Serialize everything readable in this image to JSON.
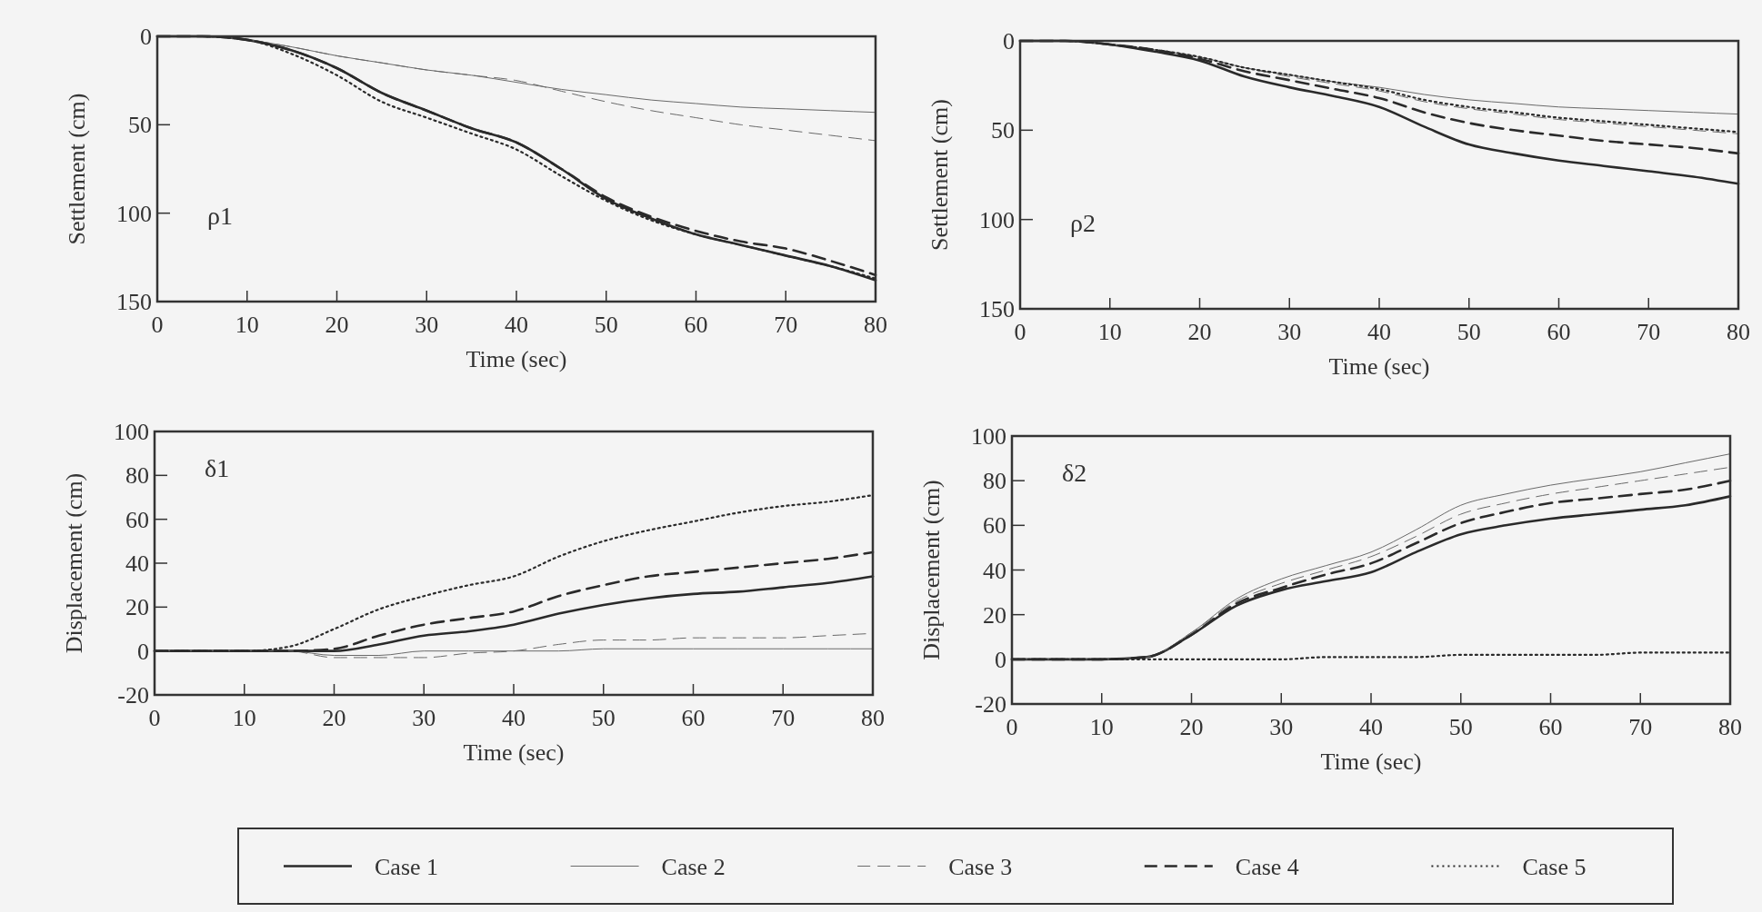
{
  "chart_data": [
    {
      "type": "line",
      "xlabel": "Time (sec)",
      "ylabel": "Settlement (cm)",
      "annotations": [
        "ρ1"
      ],
      "x": [
        0,
        5,
        10,
        15,
        20,
        25,
        30,
        35,
        40,
        45,
        50,
        55,
        60,
        65,
        70,
        75,
        80
      ],
      "xlim": [
        0,
        80
      ],
      "xticks": [
        0,
        10,
        20,
        30,
        40,
        50,
        60,
        70,
        80
      ],
      "ylim": [
        150,
        0
      ],
      "yticks": [
        0,
        50,
        100,
        150
      ],
      "grid": false,
      "legend": false,
      "series": [
        {
          "color": "#2a2a2a",
          "line_style": "solid",
          "values": [
            0,
            0,
            2,
            8,
            18,
            32,
            42,
            52,
            60,
            75,
            92,
            103,
            112,
            118,
            124,
            130,
            138
          ]
        },
        {
          "color": "#6a6a6a",
          "line_style": "solid",
          "values": [
            0,
            0,
            2,
            6,
            11,
            15,
            19,
            22,
            26,
            30,
            33,
            36,
            38,
            40,
            41,
            42,
            43
          ]
        },
        {
          "color": "#6a6a6a",
          "line_style": "dashed",
          "values": [
            0,
            0,
            2,
            6,
            11,
            15,
            19,
            22,
            25,
            31,
            37,
            42,
            46,
            50,
            53,
            56,
            59
          ]
        },
        {
          "color": "#2a2a2a",
          "line_style": "dashed",
          "values": [
            0,
            0,
            2,
            8,
            18,
            32,
            42,
            52,
            60,
            75,
            91,
            102,
            110,
            116,
            120,
            127,
            135
          ]
        },
        {
          "color": "#2a2a2a",
          "line_style": "dotted",
          "values": [
            0,
            0,
            2,
            10,
            22,
            37,
            46,
            55,
            64,
            79,
            93,
            104,
            112,
            118,
            124,
            130,
            137
          ]
        }
      ]
    },
    {
      "type": "line",
      "xlabel": "Time (sec)",
      "ylabel": "Settlement (cm)",
      "annotations": [
        "ρ2"
      ],
      "x": [
        0,
        5,
        10,
        15,
        20,
        25,
        30,
        35,
        40,
        45,
        50,
        55,
        60,
        65,
        70,
        75,
        80
      ],
      "xlim": [
        0,
        80
      ],
      "xticks": [
        0,
        10,
        20,
        30,
        40,
        50,
        60,
        70,
        80
      ],
      "ylim": [
        150,
        0
      ],
      "yticks": [
        0,
        50,
        100,
        150
      ],
      "grid": false,
      "legend": false,
      "series": [
        {
          "color": "#2a2a2a",
          "line_style": "solid",
          "values": [
            0,
            0,
            2,
            6,
            11,
            20,
            26,
            31,
            37,
            48,
            58,
            63,
            67,
            70,
            73,
            76,
            80
          ]
        },
        {
          "color": "#6a6a6a",
          "line_style": "solid",
          "values": [
            0,
            0,
            2,
            5,
            9,
            15,
            19,
            23,
            26,
            30,
            33,
            35,
            37,
            38,
            39,
            40,
            41
          ]
        },
        {
          "color": "#6a6a6a",
          "line_style": "dashed",
          "values": [
            0,
            0,
            2,
            5,
            9,
            15,
            20,
            24,
            28,
            34,
            38,
            41,
            44,
            46,
            48,
            50,
            52
          ]
        },
        {
          "color": "#2a2a2a",
          "line_style": "dashed",
          "values": [
            0,
            0,
            2,
            5,
            10,
            17,
            22,
            27,
            32,
            40,
            46,
            50,
            53,
            56,
            58,
            60,
            63
          ]
        },
        {
          "color": "#2a2a2a",
          "line_style": "dotted",
          "values": [
            0,
            0,
            2,
            5,
            9,
            15,
            19,
            23,
            27,
            33,
            37,
            40,
            43,
            45,
            47,
            49,
            51
          ]
        }
      ]
    },
    {
      "type": "line",
      "xlabel": "Time (sec)",
      "ylabel": "Displacement (cm)",
      "annotations": [
        "δ1"
      ],
      "x": [
        0,
        5,
        10,
        15,
        20,
        25,
        30,
        35,
        40,
        45,
        50,
        55,
        60,
        65,
        70,
        75,
        80
      ],
      "xlim": [
        0,
        80
      ],
      "xticks": [
        0,
        10,
        20,
        30,
        40,
        50,
        60,
        70,
        80
      ],
      "ylim": [
        -20,
        100
      ],
      "yticks": [
        -20,
        0,
        20,
        40,
        60,
        80,
        100
      ],
      "grid": false,
      "legend": false,
      "series": [
        {
          "color": "#2a2a2a",
          "line_style": "solid",
          "values": [
            0,
            0,
            0,
            0,
            0,
            3,
            7,
            9,
            12,
            17,
            21,
            24,
            26,
            27,
            29,
            31,
            34
          ]
        },
        {
          "color": "#6a6a6a",
          "line_style": "solid",
          "values": [
            0,
            0,
            0,
            0,
            -2,
            -2,
            0,
            0,
            0,
            0,
            1,
            1,
            1,
            1,
            1,
            1,
            1
          ]
        },
        {
          "color": "#6a6a6a",
          "line_style": "dashed",
          "values": [
            0,
            0,
            0,
            0,
            -3,
            -3,
            -3,
            -1,
            0,
            3,
            5,
            5,
            6,
            6,
            6,
            7,
            8
          ]
        },
        {
          "color": "#2a2a2a",
          "line_style": "dashed",
          "values": [
            0,
            0,
            0,
            0,
            1,
            7,
            12,
            15,
            18,
            25,
            30,
            34,
            36,
            38,
            40,
            42,
            45
          ]
        },
        {
          "color": "#2a2a2a",
          "line_style": "dotted",
          "values": [
            0,
            0,
            0,
            2,
            10,
            19,
            25,
            30,
            34,
            43,
            50,
            55,
            59,
            63,
            66,
            68,
            71
          ]
        }
      ]
    },
    {
      "type": "line",
      "xlabel": "Time (sec)",
      "ylabel": "Displacement (cm)",
      "annotations": [
        "δ2"
      ],
      "x": [
        0,
        5,
        10,
        15,
        20,
        25,
        30,
        35,
        40,
        45,
        50,
        55,
        60,
        65,
        70,
        75,
        80
      ],
      "xlim": [
        0,
        80
      ],
      "xticks": [
        0,
        10,
        20,
        30,
        40,
        50,
        60,
        70,
        80
      ],
      "ylim": [
        -20,
        100
      ],
      "yticks": [
        -20,
        0,
        20,
        40,
        60,
        80,
        100
      ],
      "grid": false,
      "legend": "bottom",
      "series": [
        {
          "name": "Case 1",
          "color": "#2a2a2a",
          "line_style": "solid",
          "values": [
            0,
            0,
            0,
            1,
            11,
            24,
            31,
            35,
            39,
            48,
            56,
            60,
            63,
            65,
            67,
            69,
            73
          ]
        },
        {
          "name": "Case 2",
          "color": "#6a6a6a",
          "line_style": "solid",
          "values": [
            0,
            0,
            0,
            1,
            12,
            27,
            36,
            42,
            48,
            58,
            69,
            74,
            78,
            81,
            84,
            88,
            92
          ]
        },
        {
          "name": "Case 3",
          "color": "#6a6a6a",
          "line_style": "dashed",
          "values": [
            0,
            0,
            0,
            1,
            12,
            26,
            34,
            40,
            46,
            55,
            65,
            70,
            74,
            77,
            80,
            83,
            86
          ]
        },
        {
          "name": "Case 4",
          "color": "#2a2a2a",
          "line_style": "dashed",
          "values": [
            0,
            0,
            0,
            1,
            11,
            25,
            32,
            38,
            43,
            52,
            61,
            66,
            70,
            72,
            74,
            76,
            80
          ]
        },
        {
          "name": "Case 5",
          "color": "#2a2a2a",
          "line_style": "dotted",
          "values": [
            0,
            0,
            0,
            0,
            0,
            0,
            0,
            1,
            1,
            1,
            2,
            2,
            2,
            2,
            3,
            3,
            3
          ]
        }
      ]
    }
  ]
}
